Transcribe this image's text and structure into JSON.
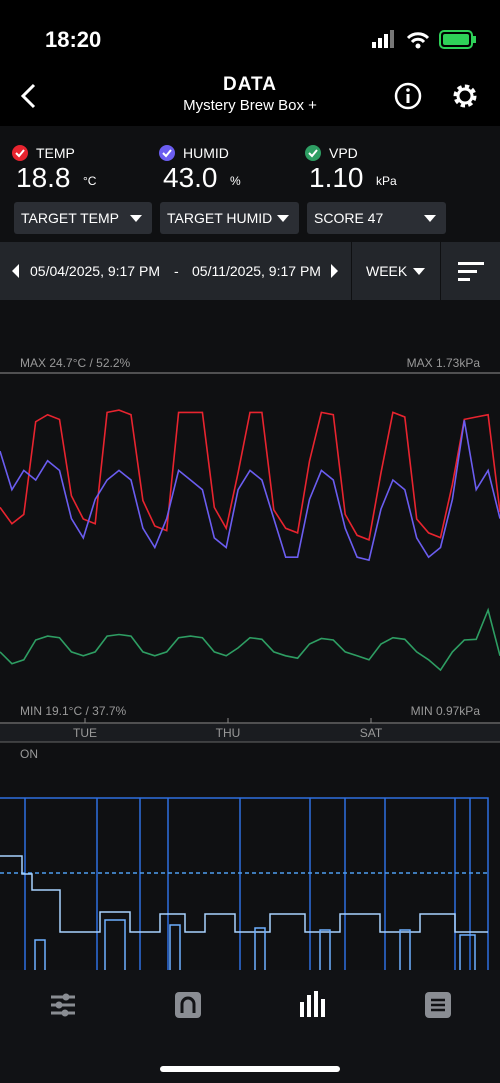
{
  "status_bar": {
    "time": "18:20"
  },
  "header": {
    "title": "DATA",
    "subtitle": "Mystery Brew Box +"
  },
  "readings": [
    {
      "label": "TEMP",
      "value": "18.8",
      "unit": "°C",
      "color": "#e8242f"
    },
    {
      "label": "HUMID",
      "value": "43.0",
      "unit": "%",
      "color": "#6b5df0"
    },
    {
      "label": "VPD",
      "value": "1.10",
      "unit": "kPa",
      "color": "#2e9e63"
    }
  ],
  "dropdowns": [
    "TARGET TEMP",
    "TARGET HUMID",
    "SCORE 47"
  ],
  "date_range": {
    "start": "05/04/2025, 9:17 PM",
    "separator": "-",
    "end": "05/11/2025, 9:17 PM",
    "period": "WEEK"
  },
  "graph": {
    "max_label": "MAX 24.7°C / 52.2%",
    "max_vpd_label": "MAX 1.73kPa",
    "min_label": "MIN 19.1°C / 37.7%",
    "min_vpd_label": "MIN 0.97kPa",
    "day_labels": [
      "TUE",
      "THU",
      "SAT"
    ],
    "series": [
      {
        "name": "TEMP",
        "color": "#e8242f",
        "ylim": [
          11.2,
          26.3
        ],
        "values": [
          20.5,
          19.8,
          20.2,
          24.2,
          24.5,
          24.3,
          21.0,
          20.0,
          19.8,
          24.6,
          24.7,
          24.5,
          20.8,
          19.7,
          19.5,
          24.6,
          24.6,
          24.6,
          20.5,
          19.6,
          22.0,
          24.6,
          24.6,
          20.4,
          19.6,
          19.4,
          22.5,
          24.6,
          24.5,
          20.2,
          19.3,
          19.1,
          22.0,
          24.6,
          24.4,
          20.0,
          19.4,
          19.2,
          21.5,
          24.3,
          24.4,
          24.5,
          20.3
        ]
      },
      {
        "name": "HUMID",
        "color": "#6b5df0",
        "ylim": [
          20.8,
          57.1
        ],
        "values": [
          49,
          45,
          47,
          46,
          48,
          47,
          42,
          40,
          44,
          46,
          47,
          46,
          41,
          39,
          42,
          47,
          46,
          45,
          40,
          39,
          45,
          47,
          46,
          42,
          38,
          38,
          44,
          47,
          46,
          41,
          38,
          37.7,
          43,
          46,
          45,
          40,
          38,
          39,
          44,
          52.2,
          45,
          47,
          42
        ]
      },
      {
        "name": "VPD",
        "color": "#2e9e63",
        "ylim": [
          0.3,
          4.73
        ],
        "values": [
          1.2,
          1.05,
          1.1,
          1.35,
          1.4,
          1.38,
          1.2,
          1.15,
          1.2,
          1.4,
          1.42,
          1.4,
          1.2,
          1.15,
          1.2,
          1.38,
          1.4,
          1.38,
          1.2,
          1.15,
          1.25,
          1.38,
          1.36,
          1.2,
          1.15,
          1.12,
          1.3,
          1.37,
          1.35,
          1.2,
          1.15,
          1.1,
          1.3,
          1.38,
          1.36,
          1.2,
          1.1,
          0.97,
          1.2,
          1.35,
          1.36,
          1.73,
          1.15
        ]
      }
    ]
  },
  "device_chart": {
    "label": "ON"
  }
}
